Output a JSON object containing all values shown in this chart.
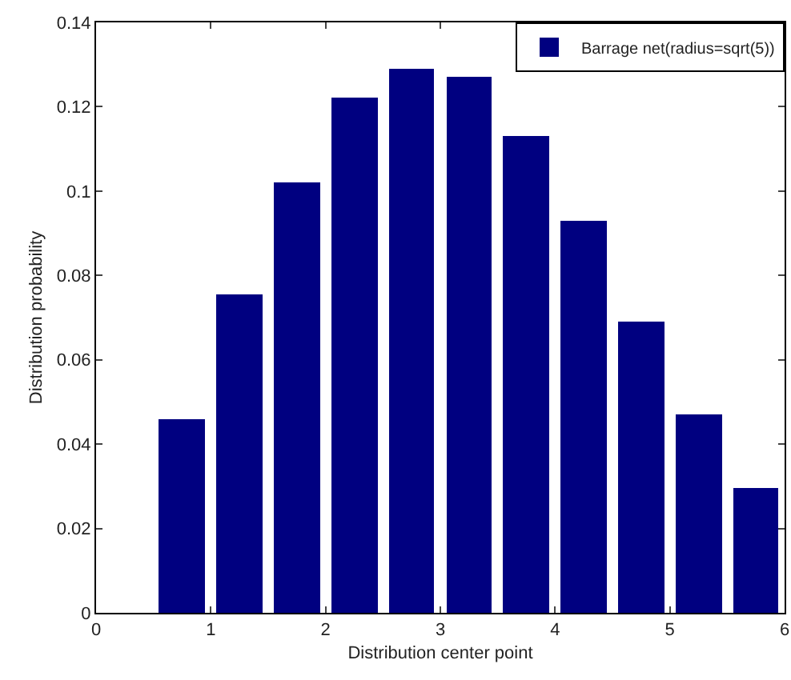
{
  "chart_data": {
    "type": "bar",
    "xlabel": "Distribution center point",
    "ylabel": "Distribution probability",
    "x": [
      0.75,
      1.25,
      1.75,
      2.25,
      2.75,
      3.25,
      3.75,
      4.25,
      4.75,
      5.25,
      5.75
    ],
    "series": [
      {
        "name": "Barrage net(radius=sqrt(5))",
        "color": "#000080",
        "values": [
          0.046,
          0.0755,
          0.102,
          0.122,
          0.129,
          0.127,
          0.113,
          0.093,
          0.069,
          0.047,
          0.0295
        ]
      }
    ],
    "xlim": [
      0,
      6
    ],
    "xticks": [
      0,
      1,
      2,
      3,
      4,
      5,
      6
    ],
    "ylim": [
      0,
      0.14
    ],
    "yticks": [
      0,
      0.02,
      0.04,
      0.06,
      0.08,
      0.1,
      0.12,
      0.14
    ],
    "grid": false,
    "legend": "top right"
  }
}
